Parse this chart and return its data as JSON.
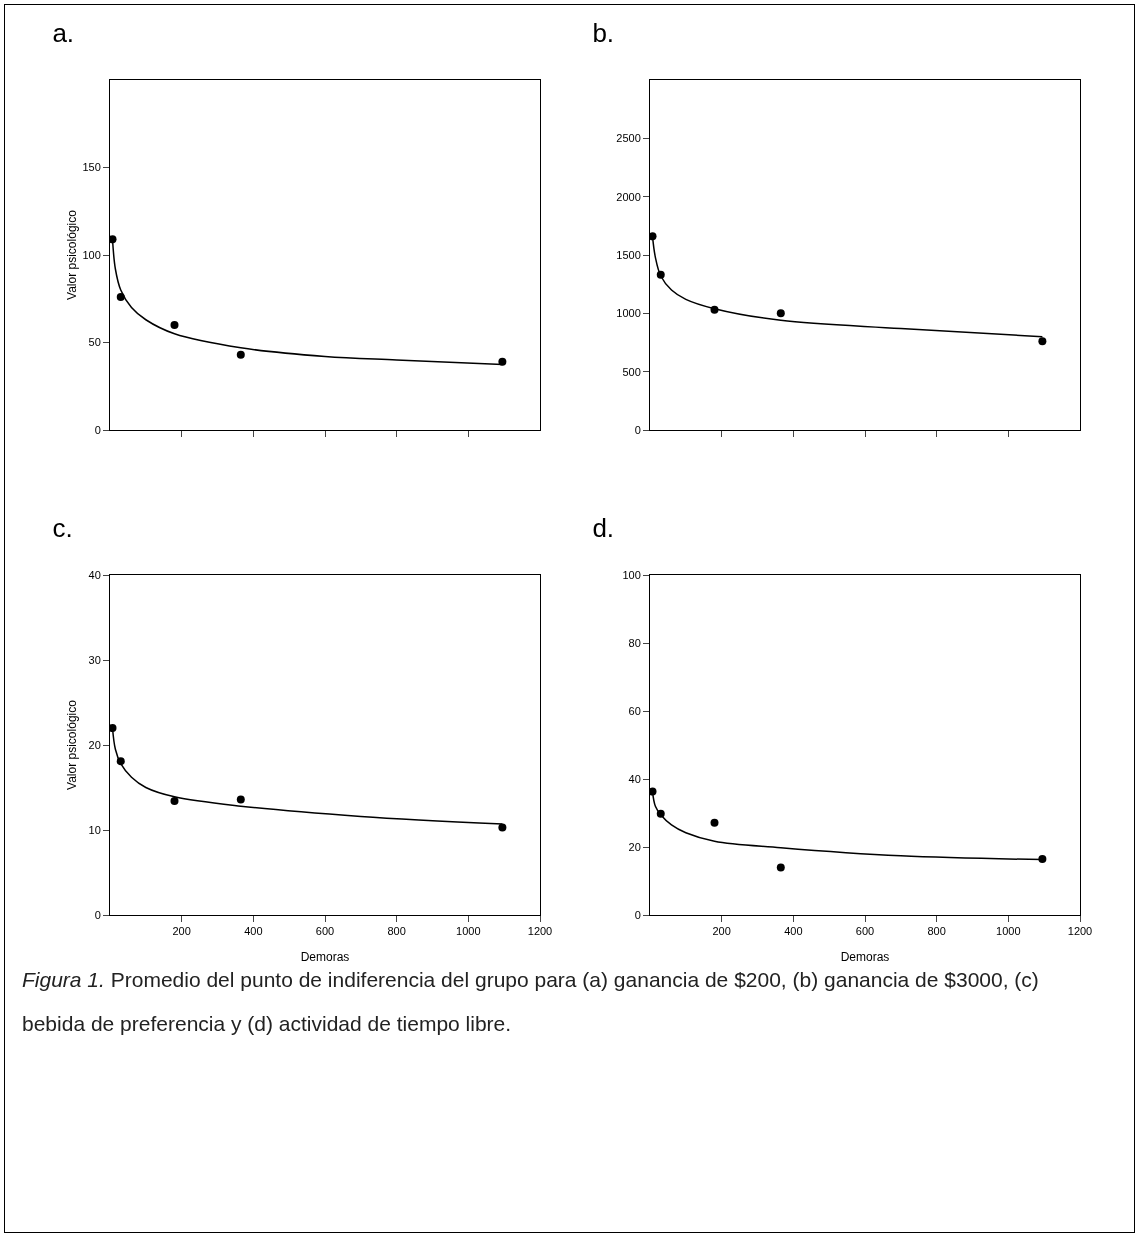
{
  "chart_data": [
    {
      "type": "scatter",
      "title": "a.",
      "ylabel": "Valor psicológico",
      "xlim": [
        0,
        1200
      ],
      "xticks": [
        200,
        400,
        600,
        800,
        1000
      ],
      "ylim": [
        0,
        200
      ],
      "yticks": [
        0,
        50,
        100,
        150
      ],
      "tick_labels": "y",
      "grid": false,
      "series": [
        {
          "type": "scatter",
          "marker": "circle",
          "color": "#000000",
          "x": [
            7,
            30,
            180,
            365,
            1095
          ],
          "values": [
            109,
            76,
            60,
            43,
            39
          ]
        },
        {
          "type": "line",
          "marker": "none",
          "line_style": "solid",
          "color": "#000000",
          "x": [
            7,
            15,
            30,
            60,
            100,
            180,
            365,
            600,
            800,
            1095
          ],
          "values": [
            109,
            92,
            80,
            70,
            63,
            55,
            47,
            42,
            40,
            37.5
          ]
        }
      ]
    },
    {
      "type": "scatter",
      "title": "b.",
      "xlim": [
        0,
        1200
      ],
      "xticks": [
        200,
        400,
        600,
        800,
        1000
      ],
      "ylim": [
        0,
        3000
      ],
      "yticks": [
        0,
        500,
        1000,
        1500,
        2000,
        2500
      ],
      "tick_labels": "y",
      "grid": false,
      "series": [
        {
          "type": "scatter",
          "marker": "circle",
          "color": "#000000",
          "x": [
            7,
            30,
            180,
            365,
            1095
          ],
          "values": [
            1660,
            1330,
            1030,
            1000,
            760
          ]
        },
        {
          "type": "line",
          "marker": "none",
          "line_style": "solid",
          "color": "#000000",
          "x": [
            7,
            15,
            30,
            60,
            100,
            180,
            365,
            700,
            1095
          ],
          "values": [
            1660,
            1480,
            1320,
            1200,
            1120,
            1040,
            940,
            870,
            800
          ]
        }
      ]
    },
    {
      "type": "scatter",
      "title": "c.",
      "xlabel": "Demoras",
      "ylabel": "Valor psicológico",
      "xlim": [
        0,
        1200
      ],
      "xticks": [
        200,
        400,
        600,
        800,
        1000,
        1200
      ],
      "ylim": [
        0,
        40
      ],
      "yticks": [
        0,
        10,
        20,
        30,
        40
      ],
      "grid": false,
      "series": [
        {
          "type": "scatter",
          "marker": "circle",
          "color": "#000000",
          "x": [
            7,
            30,
            180,
            365,
            1095
          ],
          "values": [
            22,
            18.1,
            13.4,
            13.6,
            10.3
          ]
        },
        {
          "type": "line",
          "marker": "none",
          "line_style": "solid",
          "color": "#000000",
          "x": [
            7,
            15,
            30,
            60,
            100,
            180,
            365,
            700,
            1095
          ],
          "values": [
            22,
            19.5,
            17.8,
            16.2,
            15,
            13.9,
            12.8,
            11.6,
            10.7
          ]
        }
      ]
    },
    {
      "type": "scatter",
      "title": "d.",
      "xlabel": "Demoras",
      "xlim": [
        0,
        1200
      ],
      "xticks": [
        200,
        400,
        600,
        800,
        1000,
        1200
      ],
      "ylim": [
        0,
        100
      ],
      "yticks": [
        0,
        20,
        40,
        60,
        80,
        100
      ],
      "grid": false,
      "series": [
        {
          "type": "scatter",
          "marker": "circle",
          "color": "#000000",
          "x": [
            7,
            30,
            180,
            365,
            1095
          ],
          "values": [
            36.3,
            29.8,
            27.1,
            14,
            16.5
          ]
        },
        {
          "type": "line",
          "marker": "none",
          "line_style": "solid",
          "color": "#000000",
          "x": [
            7,
            15,
            30,
            60,
            100,
            180,
            365,
            700,
            1095
          ],
          "values": [
            36.3,
            32,
            29.5,
            26.5,
            24.2,
            21.7,
            19.8,
            17.4,
            16.3
          ]
        }
      ]
    },
    {
      "type": "other",
      "annotations": [
        "Figura 1.",
        "Promedio del punto de indiferencia del grupo para (a) ganancia de $200, (b) ganancia de $3000, (c) bebida de preferencia y (d) actividad de tiempo libre."
      ]
    }
  ]
}
